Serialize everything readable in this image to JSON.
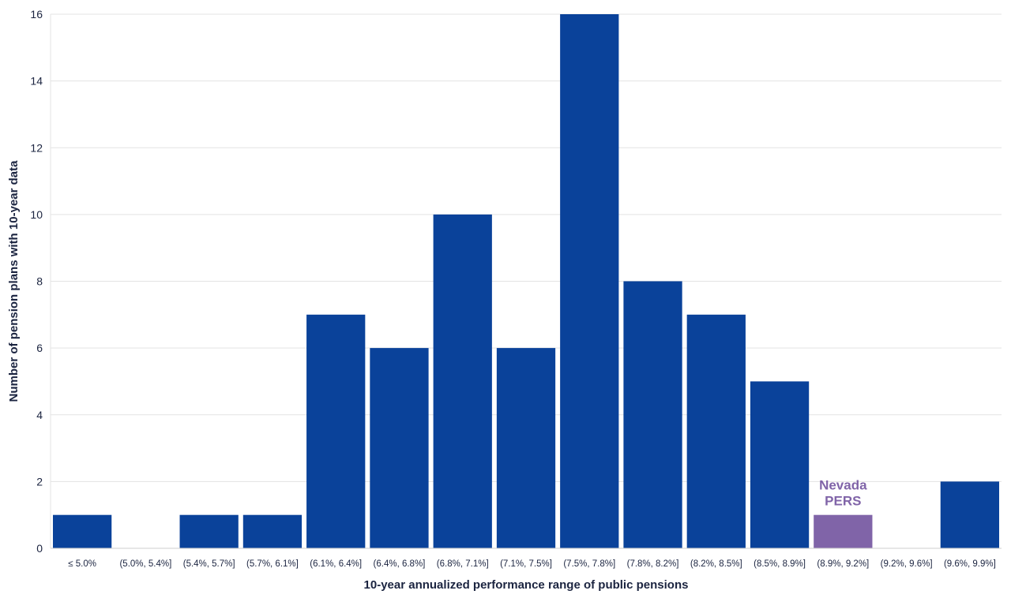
{
  "chart_data": {
    "type": "bar",
    "title": "",
    "xlabel": "10-year annualized performance range of public pensions",
    "ylabel": "Number of pension plans with 10-year data",
    "categories": [
      "≤ 5.0%",
      "(5.0%, 5.4%]",
      "(5.4%, 5.7%]",
      "(5.7%, 6.1%]",
      "(6.1%, 6.4%]",
      "(6.4%, 6.8%]",
      "(6.8%, 7.1%]",
      "(7.1%, 7.5%]",
      "(7.5%, 7.8%]",
      "(7.8%, 8.2%]",
      "(8.2%, 8.5%]",
      "(8.5%, 8.9%]",
      "(8.9%, 9.2%]",
      "(9.2%, 9.6%]",
      "(9.6%, 9.9%]"
    ],
    "values": [
      1,
      0,
      1,
      1,
      7,
      6,
      10,
      6,
      16,
      8,
      7,
      5,
      1,
      0,
      2
    ],
    "ylim": [
      0,
      16
    ],
    "yticks": [
      0,
      2,
      4,
      6,
      8,
      10,
      12,
      14,
      16
    ],
    "grid": true,
    "legend": "none",
    "highlight": {
      "category": "(8.9%, 9.2%]",
      "annotation_lines": [
        "Nevada",
        "PERS"
      ]
    },
    "colors": {
      "bar": "#0a429a",
      "highlight": "#8064a8",
      "grid": "#e3e3e3",
      "text": "#1b2440"
    }
  }
}
